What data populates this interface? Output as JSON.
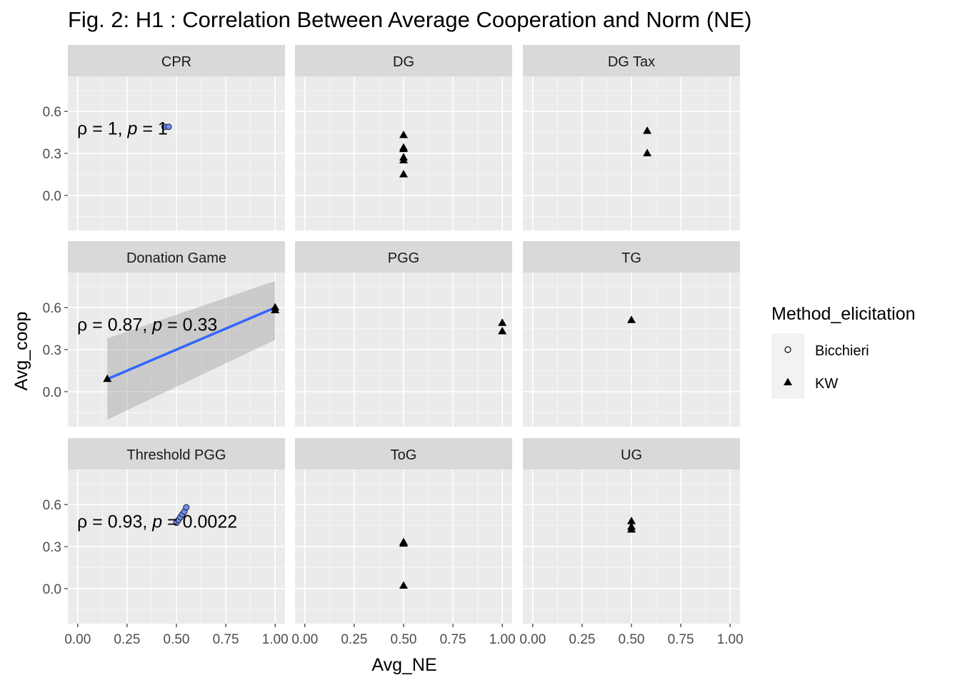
{
  "chart_data": {
    "type": "scatter",
    "title": "Fig. 2: H1 : Correlation Between Average Cooperation and Norm (NE)",
    "xlabel": "Avg_NE",
    "ylabel": "Avg_coop",
    "xlim": [
      -0.05,
      1.05
    ],
    "ylim": [
      -0.25,
      0.85
    ],
    "x_ticks": [
      "0.00",
      "0.25",
      "0.50",
      "0.75",
      "1.00"
    ],
    "y_ticks": [
      "0.0",
      "0.3",
      "0.6"
    ],
    "grid": true,
    "facet_layout": "3x3",
    "legend": {
      "title": "Method_elicitation",
      "position": "right",
      "entries": [
        {
          "label": "Bicchieri",
          "shape": "open-circle"
        },
        {
          "label": "KW",
          "shape": "filled-triangle"
        }
      ]
    },
    "panels": [
      {
        "label": "CPR",
        "points": [
          {
            "x": 0.44,
            "y": 0.49,
            "method": "Bicchieri"
          },
          {
            "x": 0.46,
            "y": 0.49,
            "method": "Bicchieri"
          }
        ],
        "fit": {
          "x": [
            0.44,
            0.46
          ],
          "y": [
            0.49,
            0.49
          ],
          "ci_low": [
            0.49,
            0.49
          ],
          "ci_high": [
            0.49,
            0.49
          ]
        },
        "annotation": {
          "rho": "1",
          "p": "1"
        }
      },
      {
        "label": "DG",
        "points": [
          {
            "x": 0.5,
            "y": 0.43,
            "method": "KW"
          },
          {
            "x": 0.5,
            "y": 0.34,
            "method": "KW"
          },
          {
            "x": 0.5,
            "y": 0.33,
            "method": "KW"
          },
          {
            "x": 0.5,
            "y": 0.27,
            "method": "KW"
          },
          {
            "x": 0.5,
            "y": 0.25,
            "method": "KW"
          },
          {
            "x": 0.5,
            "y": 0.15,
            "method": "KW"
          }
        ]
      },
      {
        "label": "DG Tax",
        "points": [
          {
            "x": 0.58,
            "y": 0.46,
            "method": "KW"
          },
          {
            "x": 0.58,
            "y": 0.3,
            "method": "KW"
          }
        ]
      },
      {
        "label": "Donation Game",
        "points": [
          {
            "x": 0.15,
            "y": 0.09,
            "method": "KW"
          },
          {
            "x": 1.0,
            "y": 0.6,
            "method": "KW"
          },
          {
            "x": 1.0,
            "y": 0.58,
            "method": "KW"
          }
        ],
        "fit": {
          "x": [
            0.15,
            1.0
          ],
          "y": [
            0.09,
            0.6
          ],
          "ci_low": [
            -0.2,
            0.37
          ],
          "ci_high": [
            0.38,
            0.79
          ]
        },
        "annotation": {
          "rho": "0.87",
          "p": "0.33"
        }
      },
      {
        "label": "PGG",
        "points": [
          {
            "x": 1.0,
            "y": 0.49,
            "method": "KW"
          },
          {
            "x": 1.0,
            "y": 0.43,
            "method": "KW"
          }
        ]
      },
      {
        "label": "TG",
        "points": [
          {
            "x": 0.5,
            "y": 0.51,
            "method": "KW"
          }
        ]
      },
      {
        "label": "Threshold PGG",
        "points": [
          {
            "x": 0.5,
            "y": 0.47,
            "method": "Bicchieri"
          },
          {
            "x": 0.51,
            "y": 0.49,
            "method": "Bicchieri"
          },
          {
            "x": 0.52,
            "y": 0.51,
            "method": "Bicchieri"
          },
          {
            "x": 0.53,
            "y": 0.53,
            "method": "Bicchieri"
          },
          {
            "x": 0.54,
            "y": 0.55,
            "method": "Bicchieri"
          },
          {
            "x": 0.55,
            "y": 0.58,
            "method": "Bicchieri"
          }
        ],
        "fit": {
          "x": [
            0.5,
            0.55
          ],
          "y": [
            0.47,
            0.58
          ],
          "ci_low": [
            0.45,
            0.55
          ],
          "ci_high": [
            0.5,
            0.61
          ]
        },
        "annotation": {
          "rho": "0.93",
          "p": "0.0022"
        }
      },
      {
        "label": "ToG",
        "points": [
          {
            "x": 0.5,
            "y": 0.33,
            "method": "KW"
          },
          {
            "x": 0.5,
            "y": 0.32,
            "method": "KW"
          },
          {
            "x": 0.5,
            "y": 0.02,
            "method": "KW"
          }
        ]
      },
      {
        "label": "UG",
        "points": [
          {
            "x": 0.5,
            "y": 0.48,
            "method": "KW"
          },
          {
            "x": 0.5,
            "y": 0.44,
            "method": "KW"
          },
          {
            "x": 0.5,
            "y": 0.42,
            "method": "KW"
          }
        ]
      }
    ],
    "colors": {
      "panel_bg": "#ebebeb",
      "strip_bg": "#d9d9d9",
      "grid": "#ffffff",
      "fit_line": "#3366ff",
      "ci_band": "#999999",
      "bicchieri_fill": "#6f8fff",
      "point": "#000000"
    }
  }
}
